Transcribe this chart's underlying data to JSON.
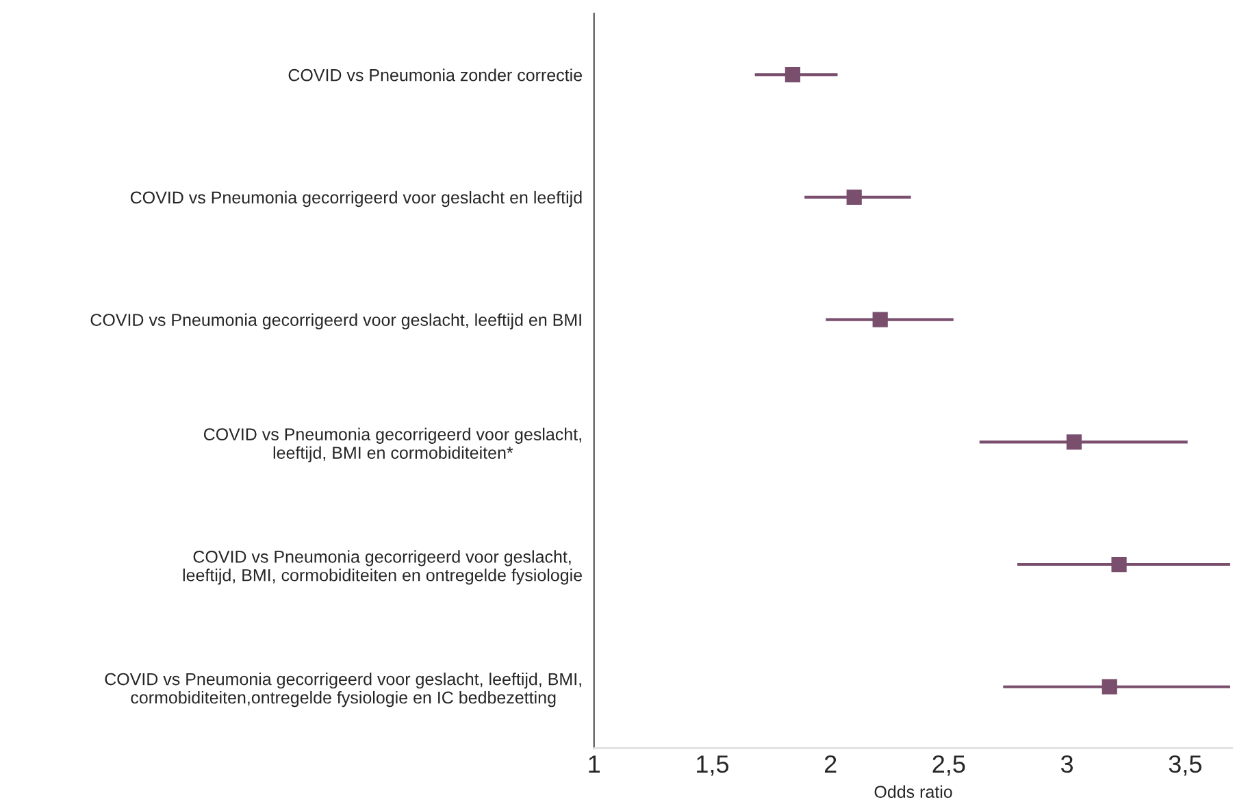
{
  "chart_data": {
    "type": "scatter",
    "orientation": "horizontal",
    "xlabel": "Odds ratio",
    "categories": [
      "COVID vs Pneumonia zonder correctie",
      "COVID vs Pneumonia gecorrigeerd voor geslacht en leeftijd",
      "COVID vs Pneumonia gecorrigeerd voor geslacht, leeftijd en BMI",
      "COVID vs Pneumonia gecorrigeerd voor geslacht,\nleeftijd, BMI en cormobiditeiten*",
      "COVID vs Pneumonia gecorrigeerd voor geslacht,\nleeftijd, BMI, cormobiditeiten en ontregelde fysiologie",
      "COVID vs Pneumonia gecorrigeerd voor geslacht, leeftijd, BMI,\ncormobiditeiten,ontregelde fysiologie en IC bedbezetting"
    ],
    "values": [
      1.84,
      2.1,
      2.21,
      3.03,
      3.22,
      3.18
    ],
    "errors": [
      [
        1.68,
        2.03
      ],
      [
        1.89,
        2.34
      ],
      [
        1.98,
        2.52
      ],
      [
        2.63,
        3.51
      ],
      [
        2.79,
        3.69
      ],
      [
        2.73,
        3.69
      ]
    ],
    "color": "#7a4f6e",
    "marker": "square",
    "xlim": [
      1,
      3.7
    ],
    "xticks": [
      {
        "value": 1,
        "label": "1"
      },
      {
        "value": 1.5,
        "label": "1,5"
      },
      {
        "value": 2,
        "label": "2"
      },
      {
        "value": 2.5,
        "label": "2,5"
      },
      {
        "value": 3,
        "label": "3"
      },
      {
        "value": 3.5,
        "label": "3,5"
      }
    ],
    "grid": false,
    "legend": false
  }
}
